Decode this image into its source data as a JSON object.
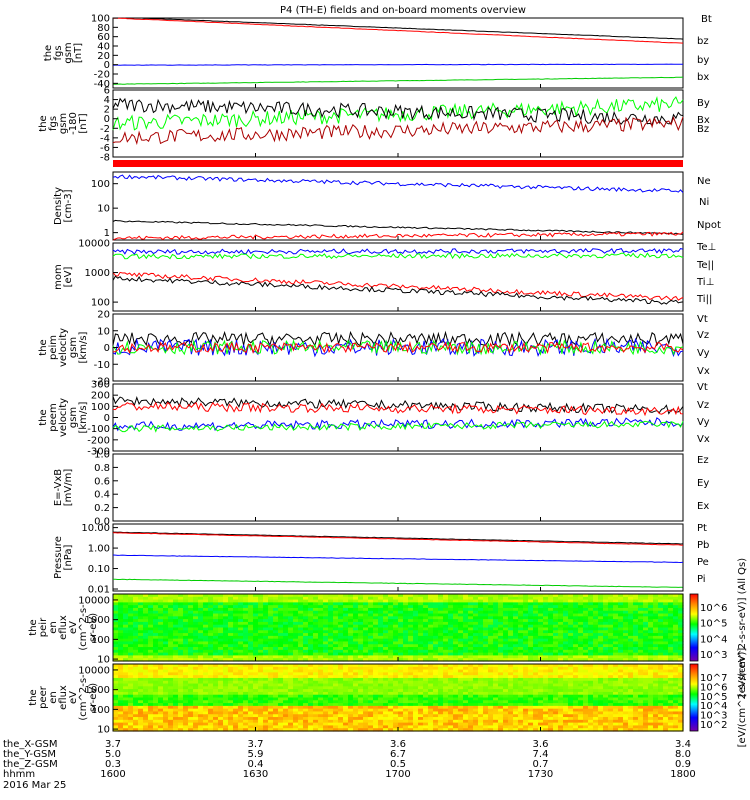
{
  "title": "P4 (TH-E) fields and on-board moments overview",
  "chart_data": [
    {
      "type": "line",
      "ylabel": [
        "the",
        "fgs",
        "gsm",
        "[nT]"
      ],
      "ylim": [
        -50,
        100
      ],
      "yticks": [
        100,
        80,
        60,
        40,
        20,
        0,
        -20,
        -40
      ],
      "legend": [
        "Bt",
        "bz",
        "by",
        "bx"
      ],
      "series": [
        {
          "name": "Bt",
          "color": "#000000",
          "start": 102,
          "end": 55,
          "noise": 0.4
        },
        {
          "name": "bz",
          "color": "#ff0000",
          "start": 100,
          "end": 46,
          "noise": 0.4
        },
        {
          "name": "by",
          "color": "#0000ff",
          "start": -1,
          "end": 1,
          "noise": 0.4
        },
        {
          "name": "bx",
          "color": "#00cc00",
          "start": -42,
          "end": -27,
          "noise": 0.4
        }
      ]
    },
    {
      "type": "line",
      "ylabel": [
        "the",
        "fgs",
        "gsm",
        "-180",
        "[nT]"
      ],
      "ylim": [
        -8,
        6
      ],
      "yticks": [
        6,
        4,
        2,
        0,
        -2,
        -4,
        -6,
        -8
      ],
      "legend": [
        "By",
        "Bx",
        "Bz"
      ],
      "series": [
        {
          "name": "By",
          "color": "#00ff00",
          "start": -1,
          "end": 3,
          "noise": 1.6
        },
        {
          "name": "Bx",
          "color": "#000000",
          "start": 3,
          "end": 0,
          "noise": 1.5
        },
        {
          "name": "Bz",
          "color": "#aa0000",
          "start": -4,
          "end": -1,
          "noise": 1.5
        }
      ]
    },
    {
      "type": "bar_strip",
      "color": "#ff0000"
    },
    {
      "type": "line",
      "ylabel": [
        "Density",
        "[cm-3]"
      ],
      "log": true,
      "ylim": [
        0.5,
        300
      ],
      "yticks": [
        100,
        10,
        1
      ],
      "yticklabels": [
        "100",
        "10",
        "1"
      ],
      "legend": [
        "Ne",
        "Ni",
        "Npot"
      ],
      "series": [
        {
          "name": "Npot",
          "color": "#0000ff",
          "start": 200,
          "end": 50,
          "noise": 0.08
        },
        {
          "name": "Ni",
          "color": "#000000",
          "start": 3,
          "end": 0.9,
          "noise": 0.03
        },
        {
          "name": "Ne",
          "color": "#ff0000",
          "start": 0.6,
          "end": 0.9,
          "noise": 0.08
        }
      ]
    },
    {
      "type": "line",
      "ylabel": [
        "mom",
        "[eV]"
      ],
      "log": true,
      "ylim": [
        50,
        10000
      ],
      "yticks": [
        10000,
        1000,
        100
      ],
      "yticklabels": [
        "10000",
        "1000",
        "100"
      ],
      "legend": [
        "Te⊥",
        "Te||",
        "Ti⊥",
        "Ti||"
      ],
      "series": [
        {
          "name": "Te⊥",
          "color": "#0000ff",
          "start": 5000,
          "end": 5500,
          "noise": 0.08
        },
        {
          "name": "Te||",
          "color": "#00ff00",
          "start": 3500,
          "end": 3800,
          "noise": 0.08
        },
        {
          "name": "Ti⊥",
          "color": "#ff0000",
          "start": 900,
          "end": 130,
          "noise": 0.08
        },
        {
          "name": "Ti||",
          "color": "#000000",
          "start": 650,
          "end": 95,
          "noise": 0.08
        }
      ]
    },
    {
      "type": "line",
      "ylabel": [
        "the",
        "peim",
        "velocity",
        "gsm",
        "[km/s]"
      ],
      "ylim": [
        -20,
        20
      ],
      "yticks": [
        20,
        10,
        0,
        -10,
        -20
      ],
      "legend": [
        "Vt",
        "Vz",
        "Vy",
        "Vx"
      ],
      "series": [
        {
          "name": "Vt",
          "color": "#000000",
          "start": 5,
          "end": 5,
          "noise": 4
        },
        {
          "name": "Vx",
          "color": "#0000ff",
          "start": 0,
          "end": 0,
          "noise": 5
        },
        {
          "name": "Vy",
          "color": "#00ff00",
          "start": 0,
          "end": 0,
          "noise": 4
        },
        {
          "name": "Vz",
          "color": "#ff0000",
          "start": 0,
          "end": 0,
          "noise": 3
        }
      ]
    },
    {
      "type": "line",
      "ylabel": [
        "the",
        "peem",
        "velocity",
        "gsm",
        "[km/s]"
      ],
      "ylim": [
        -300,
        300
      ],
      "yticks": [
        300,
        200,
        100,
        0,
        -100,
        -200,
        -300
      ],
      "legend": [
        "Vt",
        "Vz",
        "Vy",
        "Vx"
      ],
      "series": [
        {
          "name": "Vt",
          "color": "#000000",
          "start": 150,
          "end": 70,
          "noise": 40
        },
        {
          "name": "Vz",
          "color": "#ff0000",
          "start": 100,
          "end": 60,
          "noise": 40
        },
        {
          "name": "Vx",
          "color": "#0000ff",
          "start": -80,
          "end": -40,
          "noise": 40
        },
        {
          "name": "Vy",
          "color": "#00ff00",
          "start": -100,
          "end": -60,
          "noise": 30
        }
      ]
    },
    {
      "type": "line",
      "ylabel": [
        "E=-VxB",
        "[mV/m]"
      ],
      "ylim": [
        0,
        1
      ],
      "yticks": [
        1.0,
        0.8,
        0.6,
        0.4,
        0.2,
        0.0
      ],
      "yticklabels": [
        "1.0",
        "0.8",
        "0.6",
        "0.4",
        "0.2",
        "0.0"
      ],
      "legend": [
        "Ez",
        "Ey",
        "Ex"
      ],
      "series": []
    },
    {
      "type": "line",
      "ylabel": [
        "Pressure",
        "[nPa]"
      ],
      "log": true,
      "ylim": [
        0.008,
        15
      ],
      "yticks": [
        10,
        1,
        0.1,
        0.01
      ],
      "yticklabels": [
        "10.00",
        "1.00",
        "0.10",
        "0.01"
      ],
      "legend": [
        "Pt",
        "Pb",
        "Pe",
        "Pi"
      ],
      "series": [
        {
          "name": "Pt",
          "color": "#000000",
          "start": 6,
          "end": 1.6,
          "noise": 0.01
        },
        {
          "name": "Pb",
          "color": "#ff0000",
          "start": 5.6,
          "end": 1.4,
          "noise": 0.01
        },
        {
          "name": "Pe",
          "color": "#0000ff",
          "start": 0.45,
          "end": 0.2,
          "noise": 0.01
        },
        {
          "name": "Pi",
          "color": "#00cc00",
          "start": 0.03,
          "end": 0.012,
          "noise": 0.01
        }
      ]
    },
    {
      "type": "heatmap",
      "ylabel": [
        "the",
        "peir",
        "en",
        "eflux",
        "eV",
        "(cm^2-s-",
        "sr-eV)"
      ],
      "log": true,
      "ylim": [
        8,
        20000
      ],
      "yticks": [
        10000,
        1000,
        100,
        10
      ],
      "yticklabels": [
        "10000",
        "1000",
        "100",
        "10"
      ],
      "colorbar": {
        "ticks": [
          "10^6",
          "10^5",
          "10^4",
          "10^3"
        ],
        "label": "[eV/(cm^2-s-sr-eV)] (All Qs)"
      }
    },
    {
      "type": "heatmap",
      "ylabel": [
        "the",
        "peer",
        "en",
        "eflux",
        "eV",
        "(cm^2-s-",
        "sr-eV)"
      ],
      "log": true,
      "ylim": [
        8,
        20000
      ],
      "yticks": [
        10000,
        1000,
        100,
        10
      ],
      "yticklabels": [
        "10000",
        "1000",
        "100",
        "10"
      ],
      "colorbar": {
        "ticks": [
          "10^7",
          "10^6",
          "10^5",
          "10^4",
          "10^3",
          "10^2"
        ],
        "label": "[eV/(cm^2-s-sr-eV)]"
      }
    }
  ],
  "x_axis": {
    "rows": [
      {
        "label": "the_X-GSM",
        "values": [
          "3.7",
          "3.7",
          "3.6",
          "3.6",
          "3.4"
        ]
      },
      {
        "label": "the_Y-GSM",
        "values": [
          "5.0",
          "5.9",
          "6.7",
          "7.4",
          "8.0"
        ]
      },
      {
        "label": "the_Z-GSM",
        "values": [
          "0.3",
          "0.4",
          "0.5",
          "0.7",
          "0.9"
        ]
      },
      {
        "label": "hhmm",
        "values": [
          "1600",
          "1630",
          "1700",
          "1730",
          "1800"
        ]
      }
    ],
    "date": "2016 Mar 25"
  }
}
